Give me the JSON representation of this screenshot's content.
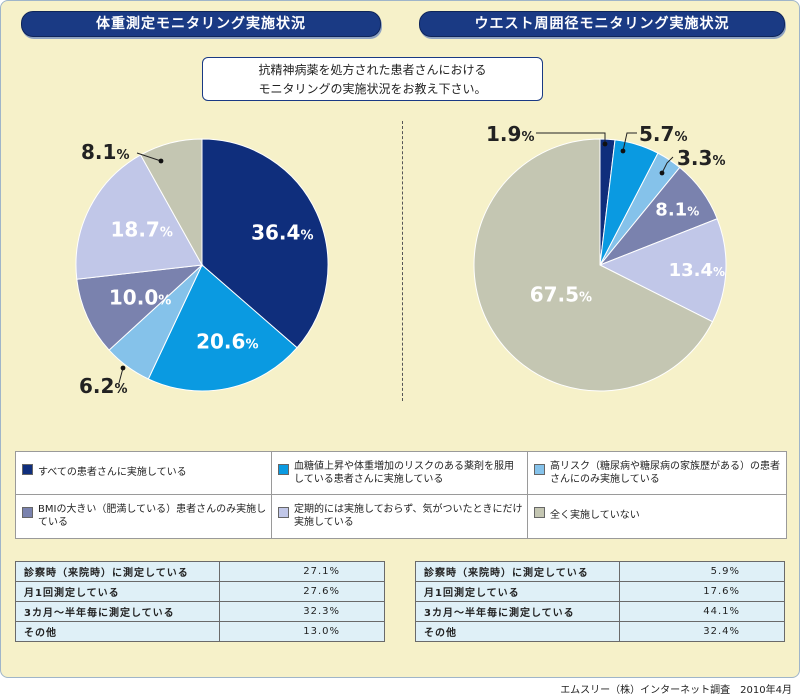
{
  "titles": {
    "left": "体重測定モニタリング実施状況",
    "right": "ウエスト周囲径モニタリング実施状況"
  },
  "question": {
    "line1": "抗精神病薬を処方された患者さんにおける",
    "line2": "モニタリングの実施状況をお教え下さい。"
  },
  "colors": {
    "all": "#0f2e7c",
    "risk": "#0a9ae1",
    "high_risk": "#85c2ea",
    "bmi": "#7a82ae",
    "periodic": "#c1c7e8",
    "none": "#c4c6b2"
  },
  "chart_data": [
    {
      "type": "pie",
      "title": "体重測定モニタリング実施状況",
      "slices": [
        {
          "category": "すべての患者さんに実施している",
          "value": 36.4,
          "label": "36.4",
          "color": "#0f2e7c"
        },
        {
          "category": "血糖値上昇や体重増加のリスクのある薬剤を服用している患者さんに実施している",
          "value": 20.6,
          "label": "20.6",
          "color": "#0a9ae1"
        },
        {
          "category": "高リスク（糖尿病や糖尿病の家族歴がある）の患者さんにのみ実施している",
          "value": 6.2,
          "label": "6.2",
          "color": "#85c2ea"
        },
        {
          "category": "BMIの大きい（肥満している）患者さんのみ実施している",
          "value": 10.0,
          "label": "10.0",
          "color": "#7a82ae"
        },
        {
          "category": "定期的には実施しておらず、気がついたときにだけ実施している",
          "value": 18.7,
          "label": "18.7",
          "color": "#c1c7e8"
        },
        {
          "category": "全く実施していない",
          "value": 8.1,
          "label": "8.1",
          "color": "#c4c6b2"
        }
      ],
      "unit": "%"
    },
    {
      "type": "pie",
      "title": "ウエスト周囲径モニタリング実施状況",
      "slices": [
        {
          "category": "すべての患者さんに実施している",
          "value": 1.9,
          "label": "1.9",
          "color": "#0f2e7c"
        },
        {
          "category": "血糖値上昇や体重増加のリスクのある薬剤を服用している患者さんに実施している",
          "value": 5.7,
          "label": "5.7",
          "color": "#0a9ae1"
        },
        {
          "category": "高リスク（糖尿病や糖尿病の家族歴がある）の患者さんにのみ実施している",
          "value": 3.3,
          "label": "3.3",
          "color": "#85c2ea"
        },
        {
          "category": "BMIの大きい（肥満している）患者さんのみ実施している",
          "value": 8.1,
          "label": "8.1",
          "color": "#7a82ae"
        },
        {
          "category": "定期的には実施しておらず、気がついたときにだけ実施している",
          "value": 13.4,
          "label": "13.4",
          "color": "#c1c7e8"
        },
        {
          "category": "全く実施していない",
          "value": 67.5,
          "label": "67.5",
          "color": "#c4c6b2"
        }
      ],
      "unit": "%"
    },
    {
      "type": "table",
      "rows": [
        {
          "label": "診察時（来院時）に測定している",
          "value": "27.1%"
        },
        {
          "label": "月1回測定している",
          "value": "27.6%"
        },
        {
          "label": "3カ月～半年毎に測定している",
          "value": "32.3%"
        },
        {
          "label": "その他",
          "value": "13.0%"
        }
      ]
    },
    {
      "type": "table",
      "rows": [
        {
          "label": "診察時（来院時）に測定している",
          "value": "5.9%"
        },
        {
          "label": "月1回測定している",
          "value": "17.6%"
        },
        {
          "label": "3カ月～半年毎に測定している",
          "value": "44.1%"
        },
        {
          "label": "その他",
          "value": "32.4%"
        }
      ]
    }
  ],
  "legend": [
    {
      "text": "すべての患者さんに実施している",
      "color": "#0f2e7c"
    },
    {
      "text": "血糖値上昇や体重増加のリスクのある薬剤を服用している患者さんに実施している",
      "color": "#0a9ae1"
    },
    {
      "text": "高リスク（糖尿病や糖尿病の家族歴がある）の患者さんにのみ実施している",
      "color": "#85c2ea"
    },
    {
      "text": "BMIの大きい（肥満している）患者さんのみ実施している",
      "color": "#7a82ae"
    },
    {
      "text": "定期的には実施しておらず、気がついたときにだけ実施している",
      "color": "#c1c7e8"
    },
    {
      "text": "全く実施していない",
      "color": "#c4c6b2"
    }
  ],
  "credit": "エムスリー（株）インターネット調査　2010年4月"
}
